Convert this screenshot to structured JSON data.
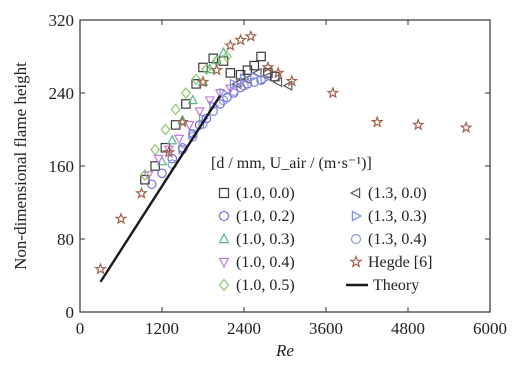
{
  "chart_data": {
    "type": "scatter",
    "title": "",
    "xlabel": "Re",
    "ylabel": "Non-dimensional flame height",
    "xlim": [
      0,
      6000
    ],
    "ylim": [
      0,
      320
    ],
    "x_ticks": [
      0,
      1200,
      2400,
      3600,
      4800,
      6000
    ],
    "y_ticks": [
      0,
      80,
      160,
      240,
      320
    ],
    "grid": false,
    "legend_title": "[d / mm, U_air / (m·s⁻¹)]",
    "legend_placement": "center",
    "series": [
      {
        "name": "(1.0, 0.0)",
        "marker": "square",
        "color": "#3a3a3a",
        "points": [
          [
            950,
            145
          ],
          [
            1100,
            160
          ],
          [
            1250,
            180
          ],
          [
            1400,
            205
          ],
          [
            1550,
            228
          ],
          [
            1700,
            250
          ],
          [
            1800,
            268
          ],
          [
            1950,
            278
          ],
          [
            2100,
            275
          ],
          [
            2200,
            262
          ],
          [
            2350,
            260
          ],
          [
            2450,
            265
          ],
          [
            2550,
            270
          ],
          [
            2650,
            280
          ],
          [
            2750,
            262
          ],
          [
            2850,
            258
          ]
        ]
      },
      {
        "name": "(1.0, 0.2)",
        "marker": "circle",
        "color": "#7b6fd4",
        "points": [
          [
            1050,
            140
          ],
          [
            1200,
            152
          ],
          [
            1350,
            168
          ],
          [
            1500,
            180
          ],
          [
            1650,
            195
          ],
          [
            1750,
            205
          ],
          [
            1850,
            212
          ],
          [
            1950,
            220
          ],
          [
            2050,
            228
          ],
          [
            2150,
            235
          ],
          [
            2250,
            240
          ],
          [
            2350,
            246
          ],
          [
            2450,
            250
          ],
          [
            2550,
            252
          ],
          [
            2650,
            254
          ]
        ]
      },
      {
        "name": "(1.0, 0.3)",
        "marker": "triangle-up",
        "color": "#5ab58a",
        "points": [
          [
            1200,
            165
          ],
          [
            1350,
            188
          ],
          [
            1500,
            210
          ],
          [
            1650,
            232
          ],
          [
            1800,
            252
          ],
          [
            1900,
            266
          ],
          [
            2000,
            276
          ],
          [
            2100,
            284
          ]
        ]
      },
      {
        "name": "(1.0, 0.4)",
        "marker": "triangle-down",
        "color": "#c47ad8",
        "points": [
          [
            1000,
            150
          ],
          [
            1150,
            168
          ],
          [
            1300,
            178
          ],
          [
            1450,
            190
          ],
          [
            1600,
            205
          ],
          [
            1750,
            220
          ],
          [
            1900,
            232
          ],
          [
            2050,
            240
          ],
          [
            2200,
            245
          ],
          [
            2350,
            250
          ]
        ]
      },
      {
        "name": "(1.0, 0.5)",
        "marker": "diamond",
        "color": "#8dc46a",
        "points": [
          [
            950,
            150
          ],
          [
            1100,
            178
          ],
          [
            1250,
            200
          ],
          [
            1400,
            222
          ],
          [
            1550,
            240
          ],
          [
            1700,
            255
          ],
          [
            1850,
            266
          ],
          [
            2000,
            275
          ],
          [
            2150,
            280
          ]
        ]
      },
      {
        "name": "(1.3, 0.0)",
        "marker": "triangle-left",
        "color": "#5a5a5a",
        "points": [
          [
            2300,
            250
          ],
          [
            2450,
            255
          ],
          [
            2600,
            262
          ],
          [
            2750,
            258
          ],
          [
            2900,
            252
          ],
          [
            3050,
            248
          ]
        ]
      },
      {
        "name": "(1.3, 0.3)",
        "marker": "triangle-right",
        "color": "#7a8ae0",
        "points": [
          [
            1500,
            178
          ],
          [
            1650,
            196
          ],
          [
            1800,
            212
          ],
          [
            1950,
            226
          ],
          [
            2100,
            240
          ],
          [
            2250,
            250
          ],
          [
            2400,
            256
          ],
          [
            2550,
            258
          ],
          [
            2700,
            255
          ]
        ]
      },
      {
        "name": "(1.3, 0.4)",
        "marker": "circle",
        "color": "#8a9ad8",
        "points": [
          [
            1350,
            162
          ],
          [
            1500,
            178
          ],
          [
            1650,
            192
          ],
          [
            1800,
            206
          ],
          [
            1950,
            220
          ],
          [
            2100,
            232
          ],
          [
            2250,
            242
          ],
          [
            2400,
            248
          ],
          [
            2550,
            252
          ]
        ]
      },
      {
        "name": "Hegde [6]",
        "marker": "star",
        "color": "#a0614a",
        "points": [
          [
            300,
            47
          ],
          [
            600,
            102
          ],
          [
            900,
            130
          ],
          [
            1300,
            175
          ],
          [
            1500,
            208
          ],
          [
            1800,
            252
          ],
          [
            2000,
            265
          ],
          [
            2200,
            292
          ],
          [
            2350,
            298
          ],
          [
            2500,
            302
          ],
          [
            2750,
            268
          ],
          [
            2900,
            262
          ],
          [
            3100,
            253
          ],
          [
            3700,
            240
          ],
          [
            4350,
            208
          ],
          [
            4950,
            205
          ],
          [
            5650,
            202
          ]
        ]
      },
      {
        "name": "Theory",
        "marker": "line",
        "color": "#1a1a1a",
        "points": [
          [
            300,
            33
          ],
          [
            2050,
            237
          ]
        ]
      }
    ]
  }
}
